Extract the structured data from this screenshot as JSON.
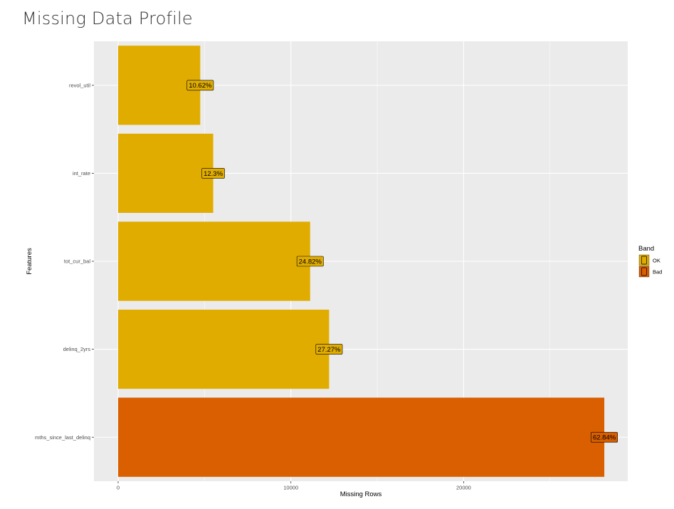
{
  "page": {
    "title": "Missing Data Profile"
  },
  "chart_data": {
    "type": "bar",
    "orientation": "horizontal",
    "title": "",
    "xlabel": "Missing Rows",
    "ylabel": "Features",
    "categories": [
      "revol_util",
      "int_rate",
      "tot_cur_bal",
      "delinq_2yrs",
      "mths_since_last_delinq"
    ],
    "values": [
      4753,
      5504,
      11115,
      12213,
      28144
    ],
    "labels": [
      "10.62%",
      "12.3%",
      "24.82%",
      "27.27%",
      "62.84%"
    ],
    "bands": [
      "OK",
      "OK",
      "OK",
      "OK",
      "Bad"
    ],
    "xlim": [
      -1400,
      29500
    ],
    "xticks": [
      0,
      10000,
      20000
    ],
    "xtick_labels": [
      "0",
      "10000",
      "20000"
    ],
    "grid": true,
    "legend": {
      "title": "Band",
      "position": "right",
      "entries": [
        {
          "name": "OK",
          "color": "#E1AC00"
        },
        {
          "name": "Bad",
          "color": "#D95F00"
        }
      ]
    },
    "colors": {
      "OK": "#E1AC00",
      "Bad": "#D95F00",
      "panel": "#EBEBEB",
      "grid": "#FFFFFF"
    }
  }
}
